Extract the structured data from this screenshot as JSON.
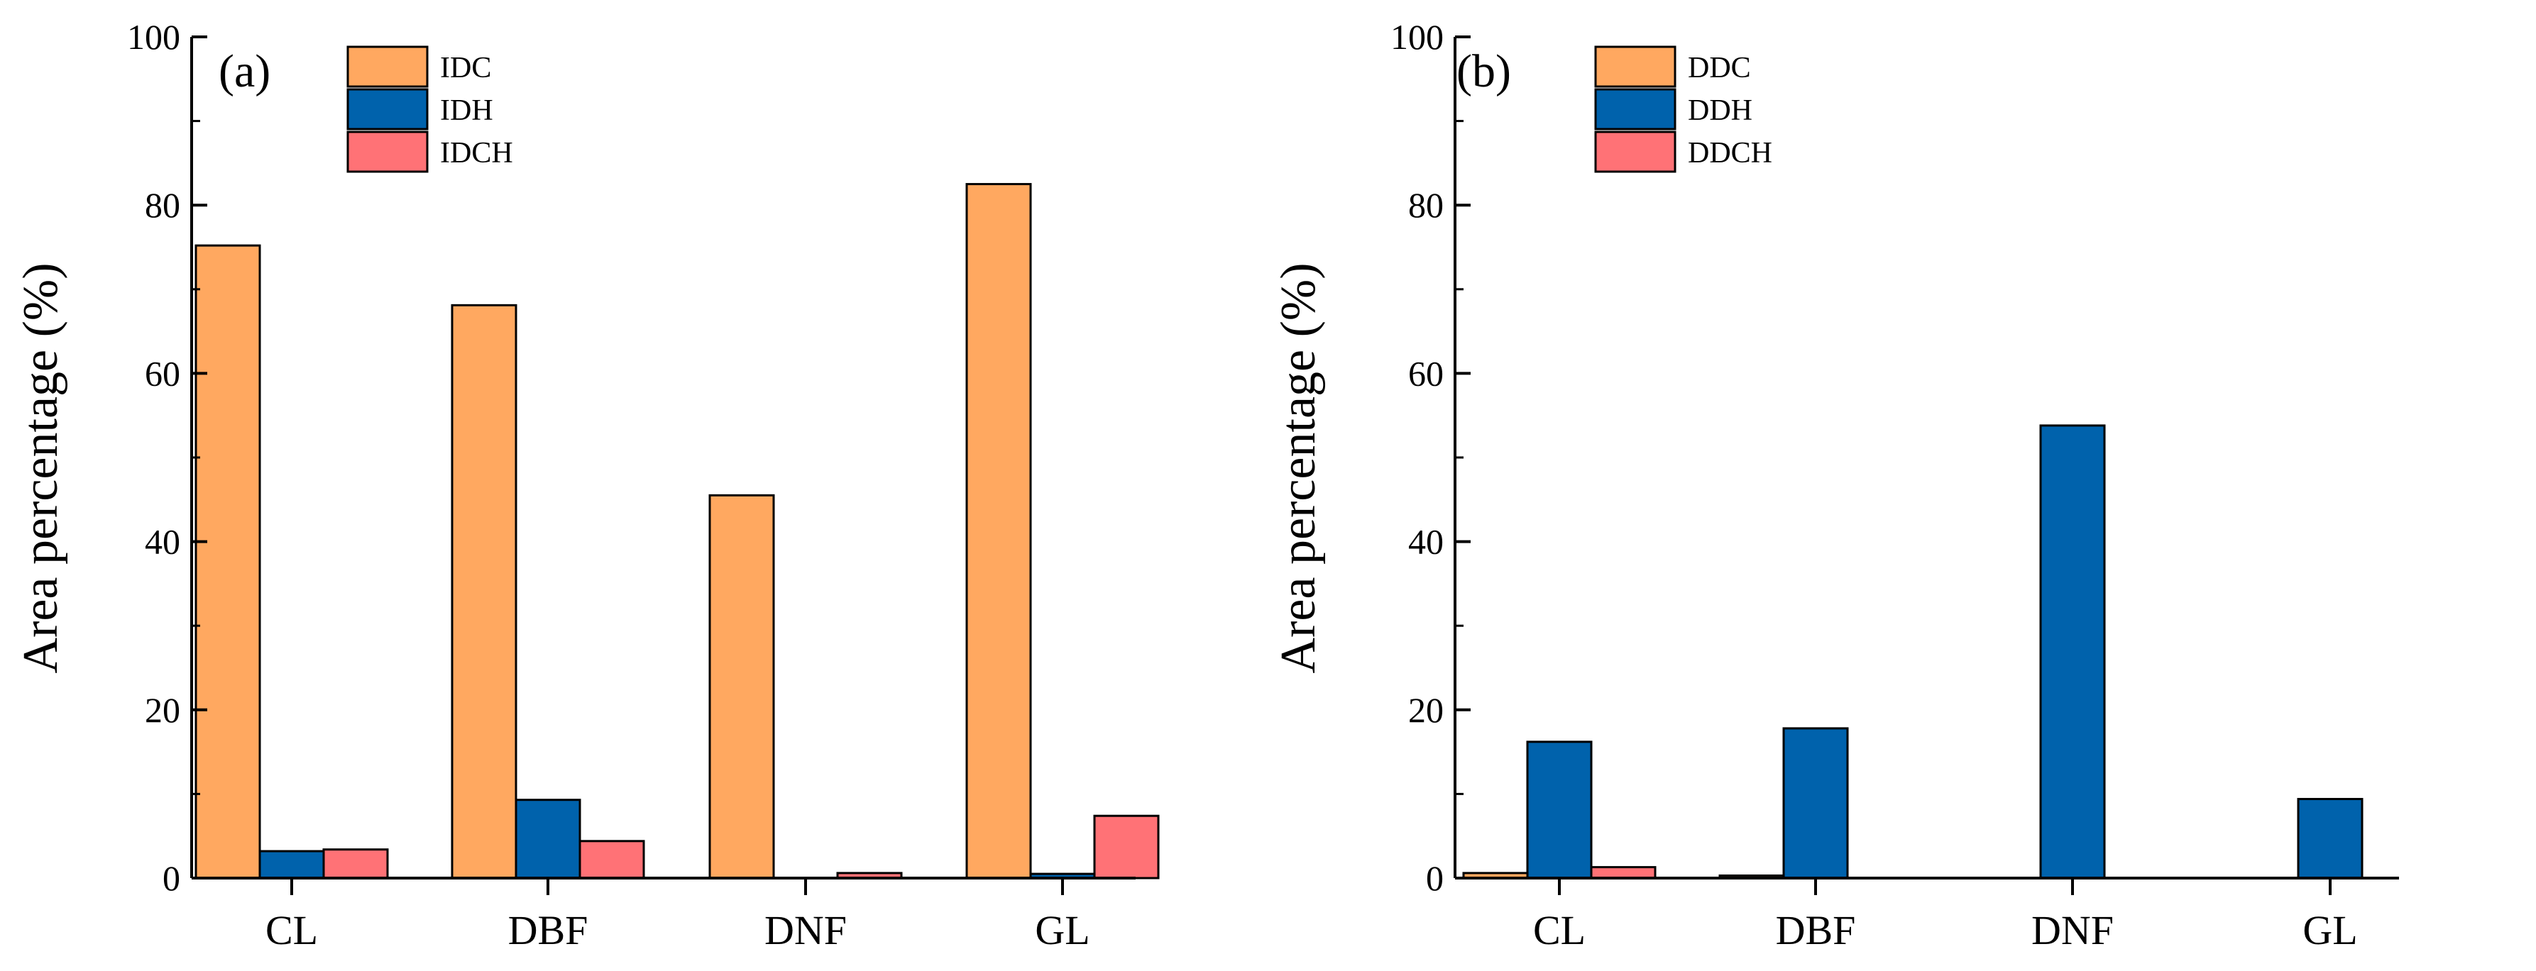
{
  "chart_data": [
    {
      "type": "bar",
      "panel_label": "(a)",
      "title": "",
      "xlabel": "",
      "ylabel": "Area percentage (%)",
      "ylim": [
        0,
        100
      ],
      "yticks": [
        0,
        20,
        40,
        60,
        80,
        100
      ],
      "categories": [
        "CL",
        "DBF",
        "DNF",
        "GL"
      ],
      "legend_position": "top-left",
      "series": [
        {
          "name": "IDC",
          "color": "#FFA860",
          "values": [
            75.2,
            68.1,
            45.5,
            82.5
          ]
        },
        {
          "name": "IDH",
          "color": "#0062AC",
          "values": [
            3.2,
            9.3,
            0.0,
            0.5
          ]
        },
        {
          "name": "IDCH",
          "color": "#FF7276",
          "values": [
            3.4,
            4.4,
            0.6,
            7.4
          ]
        }
      ]
    },
    {
      "type": "bar",
      "panel_label": "(b)",
      "title": "",
      "xlabel": "",
      "ylabel": "Area percentage (%)",
      "ylim": [
        0,
        100
      ],
      "yticks": [
        0,
        20,
        40,
        60,
        80,
        100
      ],
      "categories": [
        "CL",
        "DBF",
        "DNF",
        "GL"
      ],
      "legend_position": "top-left",
      "series": [
        {
          "name": "DDC",
          "color": "#FFA860",
          "values": [
            0.6,
            0.3,
            0.0,
            0.0
          ]
        },
        {
          "name": "DDH",
          "color": "#0062AC",
          "values": [
            16.2,
            17.8,
            53.8,
            9.4
          ]
        },
        {
          "name": "DDCH",
          "color": "#FF7276",
          "values": [
            1.3,
            0.0,
            0.0,
            0.0
          ]
        }
      ]
    }
  ]
}
